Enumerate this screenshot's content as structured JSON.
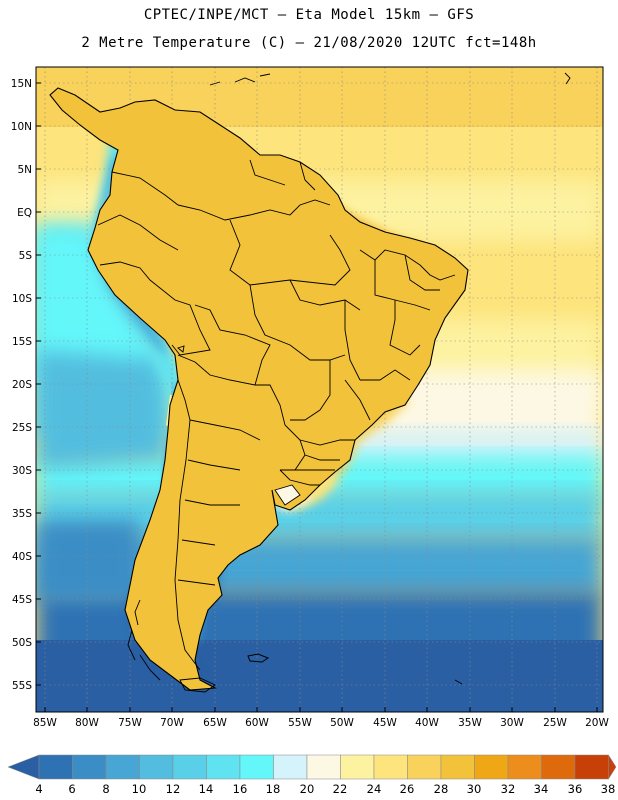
{
  "title_line1": "CPTEC/INPE/MCT –  Eta Model 15km – GFS",
  "title_line2": "2 Metre Temperature (C) – 21/08/2020 12UTC fct=148h",
  "lat_labels": [
    "15N",
    "10N",
    "5N",
    "EQ",
    "5S",
    "10S",
    "15S",
    "20S",
    "25S",
    "30S",
    "35S",
    "40S",
    "45S",
    "50S",
    "55S"
  ],
  "lon_labels": [
    "85W",
    "80W",
    "75W",
    "70W",
    "65W",
    "60W",
    "55W",
    "50W",
    "45W",
    "40W",
    "35W",
    "30W",
    "25W",
    "20W"
  ],
  "colorbar": {
    "labels": [
      "4",
      "6",
      "8",
      "10",
      "12",
      "14",
      "16",
      "18",
      "20",
      "22",
      "24",
      "26",
      "28",
      "30",
      "32",
      "34",
      "36",
      "38"
    ],
    "colors": [
      "#2a5fa3",
      "#2f72b4",
      "#3b8dc6",
      "#47a6d4",
      "#52bddf",
      "#59d0e8",
      "#60e3f0",
      "#64f7fa",
      "#d4f3fa",
      "#fdf8e4",
      "#fdf2a0",
      "#fde47c",
      "#f8d25a",
      "#f2c23a",
      "#f0a716",
      "#ec8d1c",
      "#df6a0c",
      "#c64008",
      "#c7410f"
    ]
  },
  "map_features": [
    "temperature-field",
    "coastline",
    "country-borders",
    "brazil-state-borders",
    "lat-lon-grid"
  ]
}
